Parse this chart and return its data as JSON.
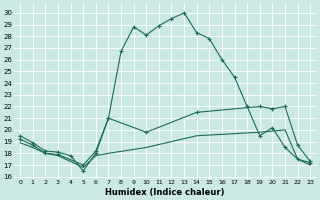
{
  "xlabel": "Humidex (Indice chaleur)",
  "background_color": "#cce8e2",
  "line_color": "#1a6b58",
  "xlim": [
    -0.5,
    23.5
  ],
  "ylim": [
    15.8,
    30.8
  ],
  "yticks": [
    16,
    17,
    18,
    19,
    20,
    21,
    22,
    23,
    24,
    25,
    26,
    27,
    28,
    29,
    30
  ],
  "xticks": [
    0,
    1,
    2,
    3,
    4,
    5,
    6,
    7,
    8,
    9,
    10,
    11,
    12,
    13,
    14,
    15,
    16,
    17,
    18,
    19,
    20,
    21,
    22,
    23
  ],
  "line1_x": [
    0,
    1,
    2,
    3,
    4,
    5,
    6,
    7,
    8,
    9,
    10,
    11,
    12,
    13,
    14,
    15,
    16,
    17,
    18,
    19,
    20,
    21,
    22,
    23
  ],
  "line1_y": [
    19.5,
    18.9,
    18.2,
    18.1,
    17.8,
    16.5,
    18.0,
    21.0,
    26.7,
    28.8,
    28.1,
    28.9,
    29.5,
    30.0,
    28.3,
    27.8,
    26.0,
    24.5,
    22.0,
    19.5,
    20.2,
    18.5,
    17.5,
    17.2
  ],
  "line2_x": [
    0,
    1,
    2,
    3,
    5,
    6,
    7,
    10,
    14,
    19,
    20,
    21,
    22,
    23
  ],
  "line2_y": [
    19.2,
    18.7,
    18.0,
    17.9,
    17.0,
    18.2,
    21.0,
    19.8,
    21.5,
    22.0,
    21.8,
    22.0,
    18.7,
    17.3
  ],
  "line3_x": [
    0,
    1,
    2,
    3,
    5,
    6,
    7,
    10,
    14,
    19,
    21,
    22,
    23
  ],
  "line3_y": [
    18.9,
    18.5,
    18.0,
    17.8,
    16.8,
    17.8,
    18.0,
    18.5,
    19.5,
    19.8,
    20.0,
    17.5,
    17.0
  ]
}
